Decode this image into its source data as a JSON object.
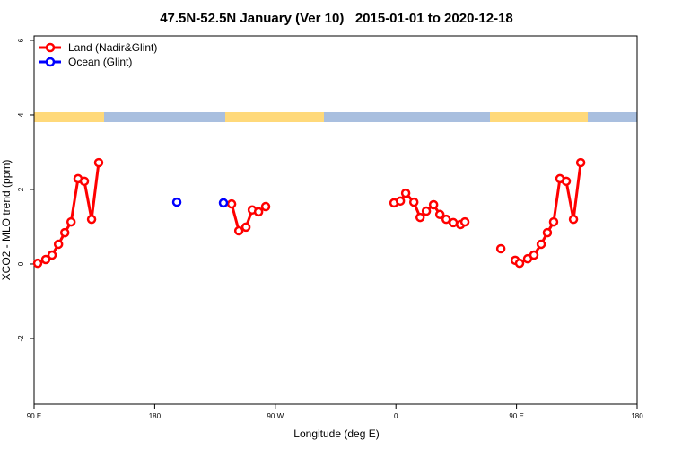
{
  "chart_data": {
    "type": "line",
    "title": "47.5N-52.5N January (Ver 10)   2015-01-01 to 2020-12-18",
    "xlabel": "Longitude (deg E)",
    "ylabel": "XCO2 - MLO trend (ppm)",
    "xlim": [
      90,
      540
    ],
    "ylim": [
      -3.76,
      6.12
    ],
    "xticks": [
      {
        "value": 90,
        "label": "90 E"
      },
      {
        "value": 180,
        "label": "180"
      },
      {
        "value": 270,
        "label": "90 W"
      },
      {
        "value": 360,
        "label": "0"
      },
      {
        "value": 450,
        "label": "90 E"
      },
      {
        "value": 540,
        "label": "180"
      }
    ],
    "yticks": [
      -2,
      0,
      2,
      4,
      6
    ],
    "legend": "top-left",
    "series": [
      {
        "name": "Land (Nadir&Glint)",
        "color": "#ff0000",
        "connect": true,
        "x": [
          92.7,
          98.7,
          103.4,
          108.2,
          112.9,
          117.6,
          122.8,
          127.5,
          132.9,
          138.2,
          null,
          237.4,
          242.8,
          248.1,
          252.8,
          257.5,
          262.8,
          null,
          358.6,
          363.3,
          367.3,
          373.4,
          378.1,
          382.7,
          388.1,
          392.8,
          397.5,
          402.8,
          408.2,
          411.5,
          null,
          438.3,
          null,
          449.0,
          452.3,
          458.3,
          463.0,
          468.4,
          473.0,
          477.7,
          482.4,
          487.1,
          492.5,
          497.9
        ],
        "values": [
          0.02,
          0.12,
          0.24,
          0.53,
          0.84,
          1.13,
          2.29,
          2.22,
          1.2,
          2.72,
          null,
          1.61,
          0.89,
          0.99,
          1.45,
          1.4,
          1.54,
          null,
          1.64,
          1.69,
          1.9,
          1.66,
          1.25,
          1.42,
          1.59,
          1.33,
          1.2,
          1.11,
          1.06,
          1.13,
          null,
          0.41,
          null,
          0.1,
          0.02,
          0.14,
          0.24,
          0.53,
          0.84,
          1.13,
          2.29,
          2.22,
          1.2,
          2.72
        ]
      },
      {
        "name": "Ocean (Glint)",
        "color": "#0000ff",
        "connect": false,
        "x": [
          196.5,
          231.3
        ],
        "values": [
          1.66,
          1.64
        ]
      }
    ]
  }
}
